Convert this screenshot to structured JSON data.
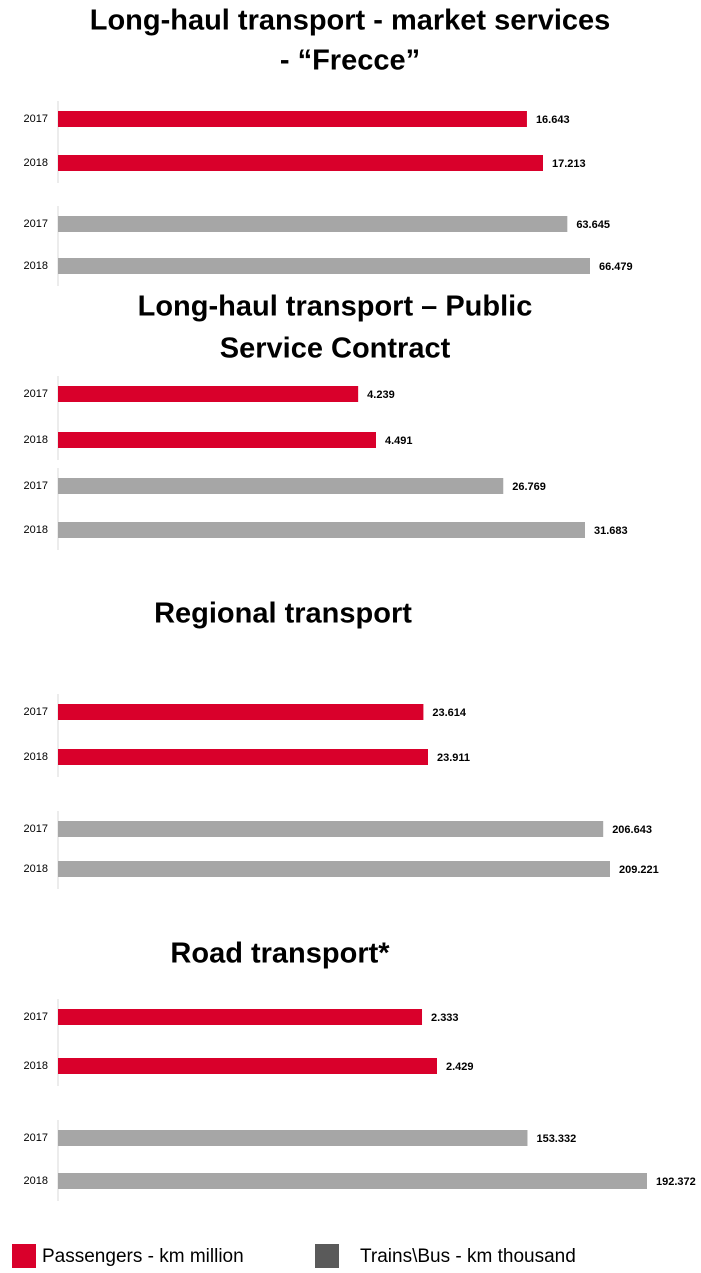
{
  "chart_data": [
    {
      "type": "bar",
      "title": [
        "Long-haul transport - market services",
        "- “Frecce”"
      ],
      "categories": [
        "2017",
        "2018"
      ],
      "series": [
        {
          "color": "#d9002b",
          "values": [
            16.643,
            17.213
          ]
        },
        {
          "color": "#a6a6a6",
          "values": [
            63.645,
            66.479
          ]
        }
      ]
    },
    {
      "type": "bar",
      "title": [
        "Long-haul transport – Public",
        "Service Contract"
      ],
      "categories": [
        "2017",
        "2018"
      ],
      "series": [
        {
          "color": "#d9002b",
          "values": [
            4.239,
            4.491
          ]
        },
        {
          "color": "#a6a6a6",
          "values": [
            26.769,
            31.683
          ]
        }
      ]
    },
    {
      "type": "bar",
      "title": [
        "Regional transport"
      ],
      "categories": [
        "2017",
        "2018"
      ],
      "series": [
        {
          "color": "#d9002b",
          "values": [
            23.614,
            23.911
          ]
        },
        {
          "color": "#a6a6a6",
          "values": [
            206.643,
            209.221
          ]
        }
      ]
    },
    {
      "type": "bar",
      "title": [
        "Road transport*"
      ],
      "categories": [
        "2017",
        "2018"
      ],
      "series": [
        {
          "color": "#d9002b",
          "values": [
            2.333,
            2.429
          ]
        },
        {
          "color": "#a6a6a6",
          "values": [
            153.332,
            192.372
          ]
        }
      ]
    }
  ],
  "legend": [
    {
      "name": "Passengers - km million",
      "color": "#d9002b"
    },
    {
      "name": "Trains\\Bus - km thousand",
      "color": "#5a5a5a"
    }
  ]
}
